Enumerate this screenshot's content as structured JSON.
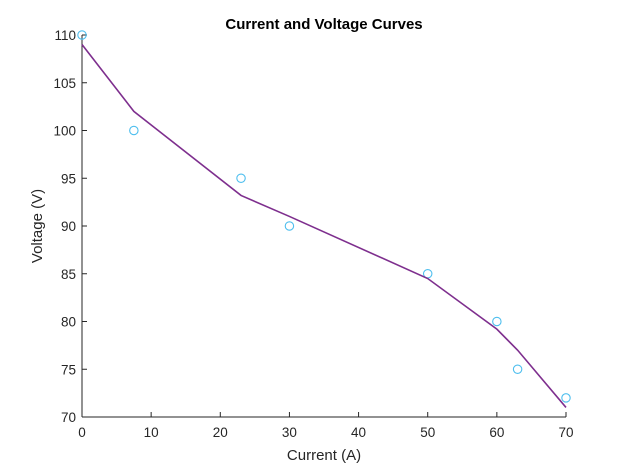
{
  "chart_data": {
    "type": "scatter",
    "title": "Current and Voltage Curves",
    "xlabel": "Current (A)",
    "ylabel": "Voltage (V)",
    "xlim": [
      0,
      70
    ],
    "ylim": [
      70,
      110
    ],
    "xticks": [
      0,
      10,
      20,
      30,
      40,
      50,
      60,
      70
    ],
    "yticks": [
      70,
      75,
      80,
      85,
      90,
      95,
      100,
      105,
      110
    ],
    "grid": false,
    "legend": "none",
    "series": [
      {
        "kind": "scatter",
        "marker": "open-circle",
        "color": "#4DBEEE",
        "x": [
          0,
          7.5,
          23,
          30,
          50,
          60,
          63,
          70
        ],
        "y": [
          110,
          100,
          95,
          90,
          85,
          80,
          75,
          72
        ]
      },
      {
        "kind": "line",
        "color": "#7E2F8E",
        "x": [
          0,
          7.5,
          23,
          30,
          50,
          60,
          63,
          70
        ],
        "y": [
          109,
          102,
          93.2,
          91,
          84.5,
          79.2,
          77,
          71
        ]
      }
    ]
  }
}
